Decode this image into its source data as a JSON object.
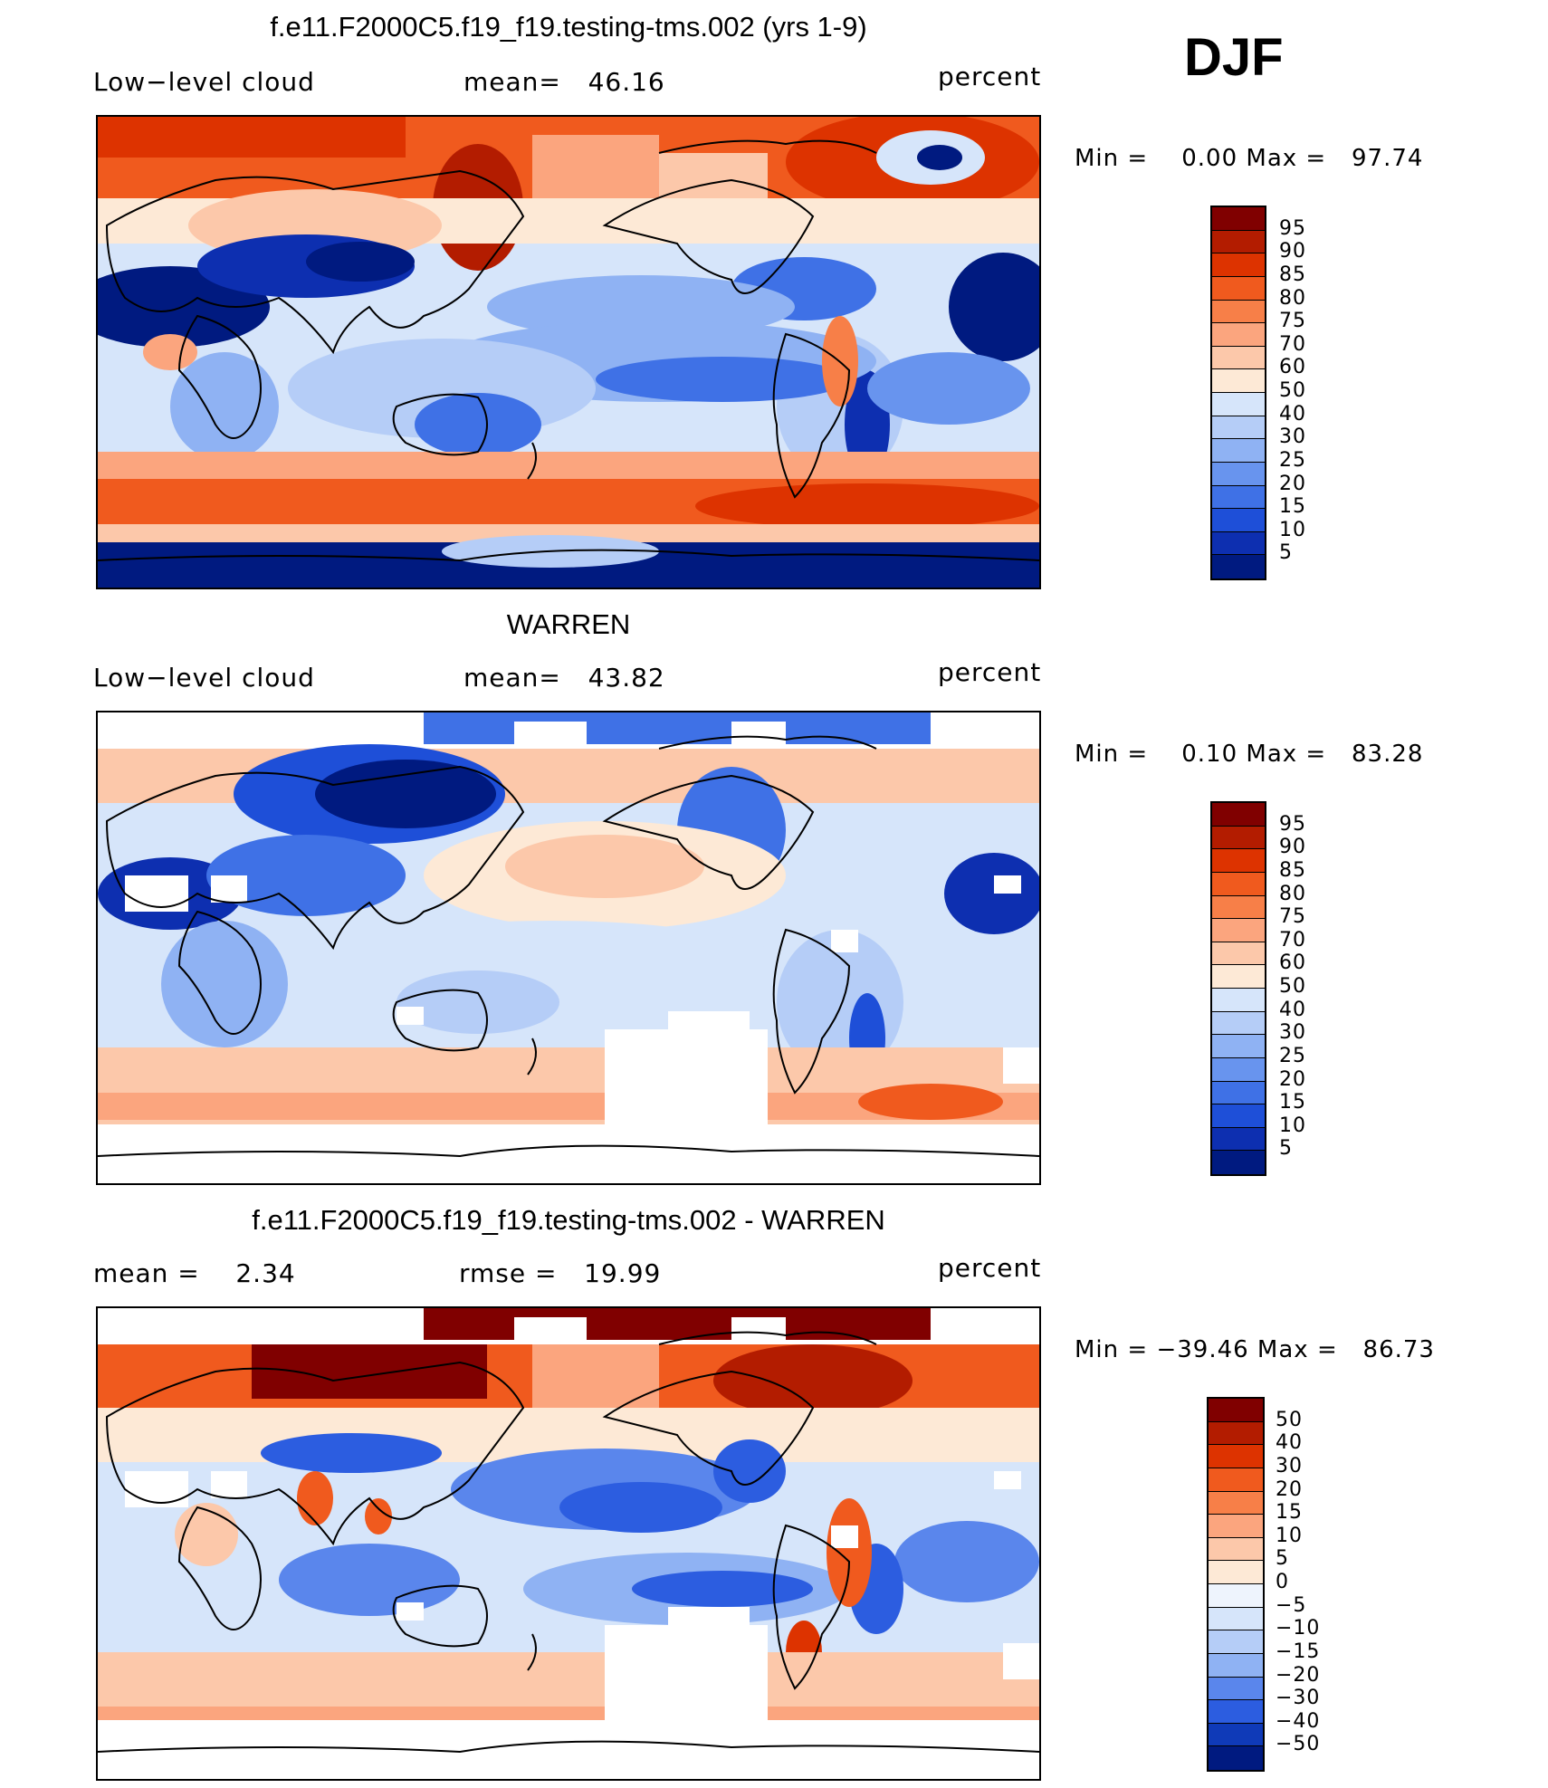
{
  "season": "DJF",
  "panels": [
    {
      "title": "f.e11.F2000C5.f19_f19.testing-tms.002 (yrs 1-9)",
      "left_label": "Low−level cloud",
      "center_label": "mean=   46.16",
      "units": "percent",
      "minmax": "Min =    0.00 Max =   97.74",
      "palette": "abs",
      "icon": "world-map-model-icon"
    },
    {
      "title": "WARREN",
      "left_label": "Low−level cloud",
      "center_label": "mean=   43.82",
      "units": "percent",
      "minmax": "Min =    0.10 Max =   83.28",
      "palette": "abs",
      "icon": "world-map-obs-icon"
    },
    {
      "title": "f.e11.F2000C5.f19_f19.testing-tms.002 - WARREN",
      "left_label": "mean =    2.34",
      "center_label": "rmse =   19.99",
      "units": "percent",
      "minmax": "Min = −39.46 Max =   86.73",
      "palette": "diff",
      "icon": "world-map-difference-icon"
    }
  ],
  "colorbars": {
    "abs": {
      "labels": [
        "95",
        "90",
        "85",
        "80",
        "75",
        "70",
        "60",
        "50",
        "40",
        "30",
        "25",
        "20",
        "15",
        "10",
        "5"
      ],
      "colors": [
        "#800000",
        "#b31c00",
        "#dd3300",
        "#f05a1e",
        "#f77f48",
        "#fba57e",
        "#fcc8aa",
        "#fde9d6",
        "#d6e5fa",
        "#b5cdf7",
        "#8fb2f3",
        "#6894ee",
        "#3f71e6",
        "#1e4fd8",
        "#0d2fb0",
        "#001a80"
      ]
    },
    "diff": {
      "labels": [
        "50",
        "40",
        "30",
        "20",
        "15",
        "10",
        "5",
        "0",
        "−5",
        "−10",
        "−15",
        "−20",
        "−30",
        "−40",
        "−50"
      ],
      "colors": [
        "#800000",
        "#b31c00",
        "#dd3300",
        "#f05a1e",
        "#f77f48",
        "#fba57e",
        "#fcc8aa",
        "#fde9d6",
        "#eef4fd",
        "#d6e5fa",
        "#b5cdf7",
        "#8fb2f3",
        "#5a86ec",
        "#2c5de0",
        "#0f3ab8",
        "#001a80"
      ]
    }
  },
  "chart_data": [
    {
      "type": "heatmap",
      "title": "f.e11.F2000C5.f19_f19.testing-tms.002 (yrs 1-9)",
      "variable": "Low−level cloud",
      "units": "percent",
      "mean": 46.16,
      "min": 0.0,
      "max": 97.74,
      "contour_levels": [
        5,
        10,
        15,
        20,
        25,
        30,
        40,
        50,
        60,
        70,
        75,
        80,
        85,
        90,
        95
      ]
    },
    {
      "type": "heatmap",
      "title": "WARREN",
      "variable": "Low−level cloud",
      "units": "percent",
      "mean": 43.82,
      "min": 0.1,
      "max": 83.28,
      "contour_levels": [
        5,
        10,
        15,
        20,
        25,
        30,
        40,
        50,
        60,
        70,
        75,
        80,
        85,
        90,
        95
      ]
    },
    {
      "type": "heatmap",
      "title": "f.e11.F2000C5.f19_f19.testing-tms.002 - WARREN",
      "units": "percent",
      "mean": 2.34,
      "rmse": 19.99,
      "min": -39.46,
      "max": 86.73,
      "contour_levels": [
        -50,
        -40,
        -30,
        -20,
        -15,
        -10,
        -5,
        0,
        5,
        10,
        15,
        20,
        30,
        40,
        50
      ]
    }
  ]
}
